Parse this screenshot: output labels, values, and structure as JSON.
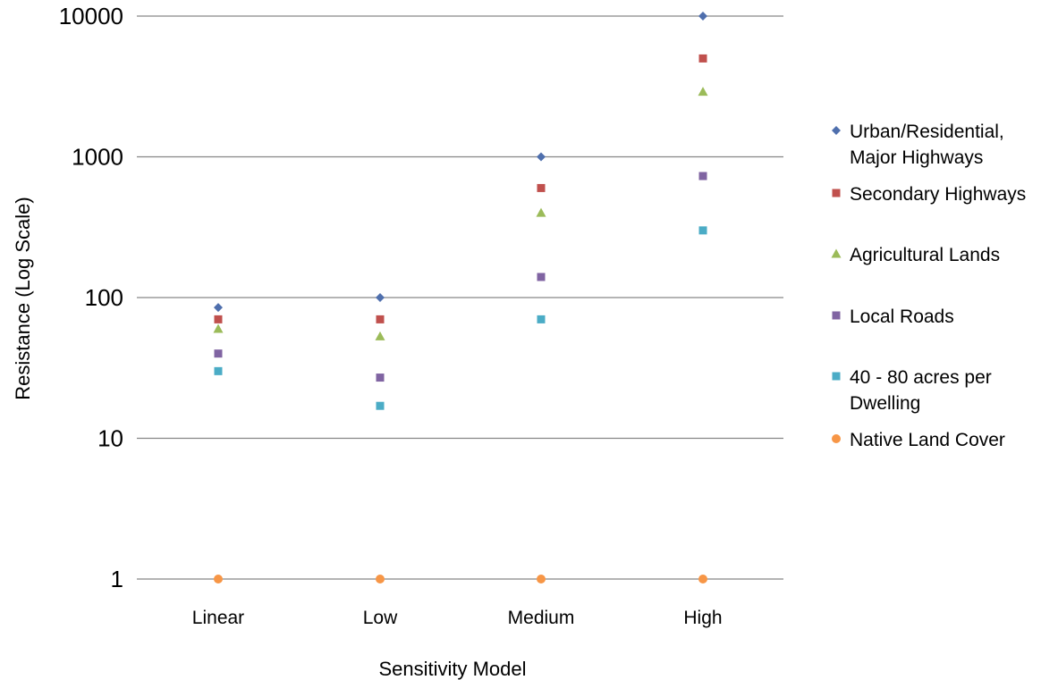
{
  "chart_data": {
    "type": "scatter",
    "title": "",
    "xlabel": "Sensitivity Model",
    "ylabel": "Resistance (Log Scale)",
    "yscale": "log",
    "ylim": [
      1,
      10000
    ],
    "yticks": [
      "1",
      "10",
      "100",
      "1000",
      "10000"
    ],
    "grid": "horizontal",
    "legend_position": "right",
    "categories": [
      "Linear",
      "Low",
      "Medium",
      "High"
    ],
    "series": [
      {
        "name": "Urban/Residential, Major Highways",
        "legend_lines": [
          "Urban/Residential,",
          "Major Highways"
        ],
        "marker": "diamond",
        "color": "#4f6fad",
        "values": [
          85,
          100,
          1000,
          10000
        ]
      },
      {
        "name": "Secondary Highways",
        "legend_lines": [
          "Secondary Highways"
        ],
        "marker": "square",
        "color": "#c0504d",
        "values": [
          70,
          70,
          600,
          5000
        ]
      },
      {
        "name": "Agricultural Lands",
        "legend_lines": [
          "Agricultural Lands"
        ],
        "marker": "triangle",
        "color": "#9bbb59",
        "values": [
          60,
          53,
          400,
          2900
        ]
      },
      {
        "name": "Local Roads",
        "legend_lines": [
          "Local Roads"
        ],
        "marker": "square",
        "color": "#8064a2",
        "values": [
          40,
          27,
          140,
          730
        ]
      },
      {
        "name": "40 - 80 acres per Dwelling",
        "legend_lines": [
          "40 - 80 acres per",
          "Dwelling"
        ],
        "marker": "square",
        "color": "#4bacc6",
        "values": [
          30,
          17,
          70,
          300
        ]
      },
      {
        "name": "Native Land Cover",
        "legend_lines": [
          "Native Land Cover"
        ],
        "marker": "circle",
        "color": "#f79646",
        "values": [
          1,
          1,
          1,
          1
        ]
      }
    ]
  }
}
